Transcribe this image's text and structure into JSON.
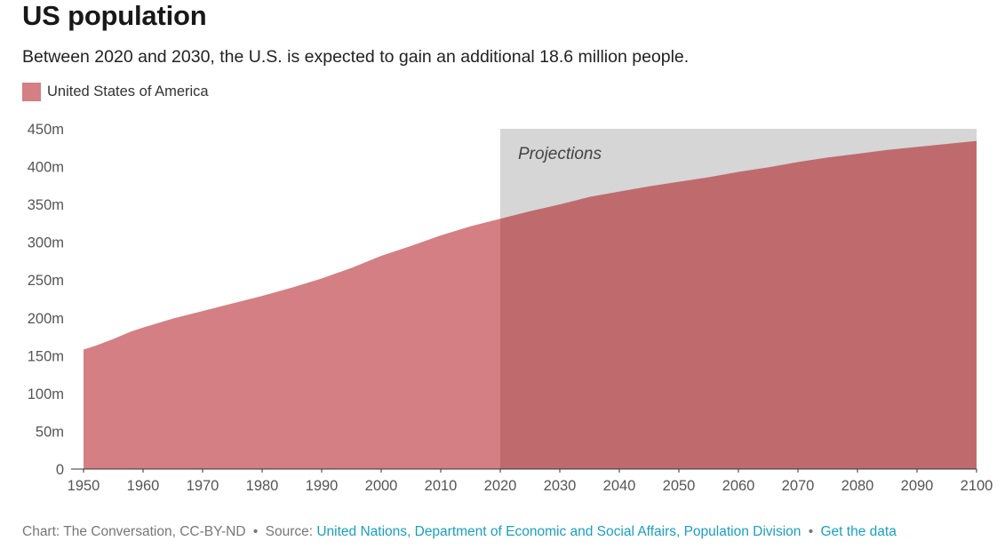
{
  "header": {
    "title": "US population",
    "subtitle": "Between 2020 and 2030, the U.S. is expected to gain an additional 18.6 million people."
  },
  "legend": {
    "label": "United States of America",
    "color": "#d47f83"
  },
  "colors": {
    "historical": "#d47f83",
    "projection": "#bf6b6e",
    "projection_band": "#d6d6d6"
  },
  "chart_data": {
    "type": "area",
    "title": "US population",
    "xlabel": "",
    "ylabel": "",
    "xlim": [
      1950,
      2100
    ],
    "ylim": [
      0,
      450
    ],
    "x_ticks": [
      1950,
      1960,
      1970,
      1980,
      1990,
      2000,
      2010,
      2020,
      2030,
      2040,
      2050,
      2060,
      2070,
      2080,
      2090,
      2100
    ],
    "y_ticks": [
      0,
      50,
      100,
      150,
      200,
      250,
      300,
      350,
      400,
      450
    ],
    "y_tick_labels": [
      "0",
      "50m",
      "100m",
      "150m",
      "200m",
      "250m",
      "300m",
      "350m",
      "400m",
      "450m"
    ],
    "projection_start": 2020,
    "projection_label": "Projections",
    "series": [
      {
        "name": "United States of America",
        "unit": "millions",
        "x": [
          1950,
          1952,
          1955,
          1958,
          1960,
          1965,
          1970,
          1975,
          1980,
          1985,
          1990,
          1995,
          2000,
          2005,
          2010,
          2015,
          2020,
          2025,
          2030,
          2035,
          2040,
          2045,
          2050,
          2055,
          2060,
          2065,
          2070,
          2075,
          2080,
          2085,
          2090,
          2095,
          2100
        ],
        "values": [
          158,
          163,
          172,
          182,
          187,
          199,
          209,
          219,
          229,
          240,
          252,
          266,
          282,
          295,
          309,
          321,
          331,
          341,
          350,
          360,
          367,
          374,
          380,
          386,
          393,
          399,
          406,
          412,
          417,
          422,
          426,
          430,
          434
        ]
      }
    ]
  },
  "footer": {
    "credit": "Chart: The Conversation, CC-BY-ND",
    "separator": "•",
    "source_label": "Source:",
    "source_link": "United Nations, Department of Economic and Social Affairs, Population Division",
    "data_link": "Get the data"
  }
}
